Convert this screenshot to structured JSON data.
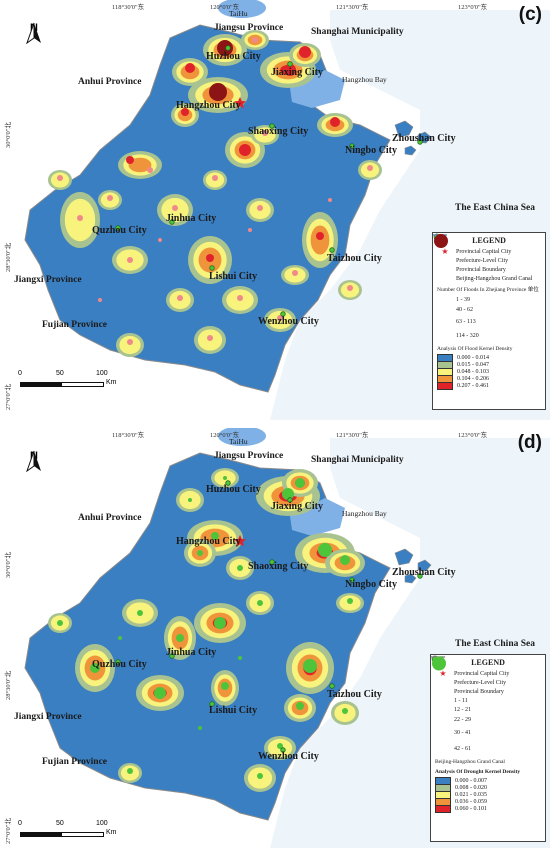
{
  "coords": {
    "top": [
      "118°30'0\"东",
      "120°0'0\"东",
      "121°30'0\"东",
      "123°0'0\"东"
    ],
    "left": [
      "30°0'0\"北",
      "28°30'0\"北",
      "27°0'0\"北"
    ]
  },
  "north_label": "N",
  "scale": {
    "zero": "0",
    "mid": "50",
    "max": "100",
    "unit": "Km"
  },
  "places": {
    "taihu": "TaiHu",
    "jiangsu": "Jiangsu Province",
    "shanghai": "Shanghai Municipality",
    "anhui": "Anhui Province",
    "hangzhou_bay": "Hangzhou Bay",
    "huzhou": "Huzhou City",
    "jiaxing": "Jiaxing City",
    "hangzhou": "Hangzhou City",
    "shaoxing": "Shaoxing City",
    "ningbo": "Ningbo City",
    "zhoushan": "Zhoushan City",
    "jinhua": "Jinhua City",
    "quzhou": "Quzhou City",
    "lishui": "Lishui City",
    "taizhou": "Taizhou City",
    "wenzhou": "Wenzhou City",
    "east_china_sea": "The East China Sea",
    "jiangxi": "Jiangxi Province",
    "fujian": "Fujian Province"
  },
  "panel_c": {
    "letter": "(c)",
    "legend": {
      "title": "LEGEND",
      "capital": "Provincial Capital City",
      "prefecture": "Prefecture-Level City",
      "boundary": "Provincial Boundary",
      "canal": "Beijing-Hangzhou Grand Canal",
      "count_title": "Number Of Floods In Zhejiang Province",
      "count_unit": "单位",
      "classes": [
        "1 - 39",
        "40 - 62",
        "63 - 113",
        "114 - 320"
      ],
      "density_title": "Analysis Of Flood  Kernel Density",
      "density_classes": [
        "0.000 - 0.014",
        "0.015 - 0.047",
        "0.048 - 0.103",
        "0.104 - 0.206",
        "0.207 - 0.461"
      ]
    }
  },
  "panel_d": {
    "letter": "(d)",
    "legend": {
      "title": "LEGEND",
      "capital": "Provincial Capital City",
      "prefecture": "Prefecture-Level City",
      "boundary": "Provincial Boundary",
      "classes": [
        "1 - 11",
        "12 - 21",
        "22 - 29",
        "30 - 41",
        "42 - 61"
      ],
      "canal": "Beijing-Hangzhou Grand Canal",
      "density_title": "Analysis Of Drought  Kernel Density",
      "density_classes": [
        "0.000 - 0.007",
        "0.008 - 0.020",
        "0.021 - 0.035",
        "0.036 - 0.059",
        "0.060 - 0.101"
      ]
    }
  },
  "colors": {
    "ocean": "#eef5fa",
    "outside": "#ffffff",
    "boundary": "#8a8a8a",
    "water": "#7fb1e6",
    "density": [
      "#3a7fc2",
      "#a8c290",
      "#f7f37c",
      "#f0943c",
      "#e0232a"
    ],
    "flood_point": "#e0232a",
    "flood_point_light": "#f08a8a",
    "drought_point": "#4ec43a",
    "capital_star": "#e0232a"
  }
}
